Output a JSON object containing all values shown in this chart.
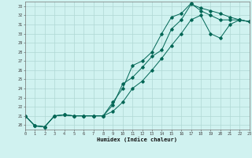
{
  "xlabel": "Humidex (Indice chaleur)",
  "bg_color": "#d0f2f0",
  "grid_color": "#b0d8d4",
  "line_color": "#006655",
  "xlim": [
    0,
    23
  ],
  "ylim": [
    19.5,
    33.5
  ],
  "xticks": [
    0,
    1,
    2,
    3,
    4,
    5,
    6,
    7,
    8,
    9,
    10,
    11,
    12,
    13,
    14,
    15,
    16,
    17,
    18,
    19,
    20,
    21,
    22,
    23
  ],
  "yticks": [
    20,
    21,
    22,
    23,
    24,
    25,
    26,
    27,
    28,
    29,
    30,
    31,
    32,
    33
  ],
  "line1_x": [
    0,
    1,
    2,
    3,
    4,
    5,
    6,
    7,
    8,
    9,
    10,
    11,
    12,
    13,
    14,
    15,
    16,
    17,
    18,
    19,
    20,
    21,
    22,
    23
  ],
  "line1_y": [
    21.0,
    19.9,
    19.8,
    21.0,
    21.1,
    21.0,
    21.0,
    21.0,
    21.0,
    22.2,
    24.5,
    25.2,
    26.3,
    27.5,
    28.2,
    30.5,
    31.5,
    33.2,
    32.8,
    32.5,
    32.2,
    31.8,
    31.5,
    31.3
  ],
  "line2_x": [
    0,
    1,
    2,
    3,
    4,
    5,
    6,
    7,
    8,
    9,
    10,
    11,
    12,
    13,
    14,
    15,
    16,
    17,
    18,
    19,
    20,
    21,
    22,
    23
  ],
  "line2_y": [
    21.0,
    19.9,
    19.8,
    21.0,
    21.1,
    21.0,
    21.0,
    21.0,
    21.0,
    21.5,
    22.5,
    24.0,
    24.8,
    26.0,
    27.3,
    28.7,
    30.0,
    31.5,
    32.0,
    30.0,
    29.5,
    31.0,
    31.5,
    31.3
  ],
  "line3_x": [
    0,
    1,
    2,
    3,
    4,
    5,
    6,
    7,
    8,
    9,
    10,
    11,
    12,
    13,
    14,
    15,
    16,
    17,
    18,
    19,
    20,
    21,
    22,
    23
  ],
  "line3_y": [
    21.0,
    19.9,
    19.8,
    21.0,
    21.1,
    21.0,
    21.0,
    21.0,
    21.0,
    22.5,
    24.0,
    26.5,
    27.0,
    28.0,
    30.0,
    31.8,
    32.2,
    33.3,
    32.5,
    32.0,
    31.5,
    31.5,
    31.5,
    31.3
  ]
}
